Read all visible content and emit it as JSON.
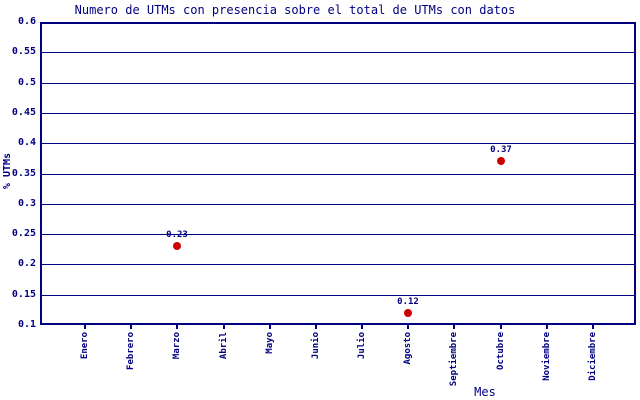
{
  "chart_data": {
    "type": "scatter",
    "title": "Numero de UTMs con presencia sobre el total de UTMs con datos",
    "xlabel": "Mes",
    "ylabel": "% UTMs",
    "categories": [
      "Enero",
      "Febrero",
      "Marzo",
      "Abril",
      "Mayo",
      "Junio",
      "Julio",
      "Agosto",
      "Septiembre",
      "Octubre",
      "Noviembre",
      "Diciembre"
    ],
    "points": [
      {
        "category": "Marzo",
        "value": 0.23,
        "label": "0.23"
      },
      {
        "category": "Agosto",
        "value": 0.12,
        "label": "0.12"
      },
      {
        "category": "Octubre",
        "value": 0.37,
        "label": "0.37"
      }
    ],
    "ylim": [
      0.1,
      0.6
    ],
    "y_ticks": [
      "0.6",
      "0.55",
      "0.5",
      "0.45",
      "0.4",
      "0.35",
      "0.3",
      "0.25",
      "0.2",
      "0.15",
      "0.1"
    ],
    "grid": true,
    "legend": "none",
    "colors": {
      "axis": "#000080",
      "text": "#000080",
      "point": "#cc0000",
      "background": "#ffffff"
    }
  }
}
